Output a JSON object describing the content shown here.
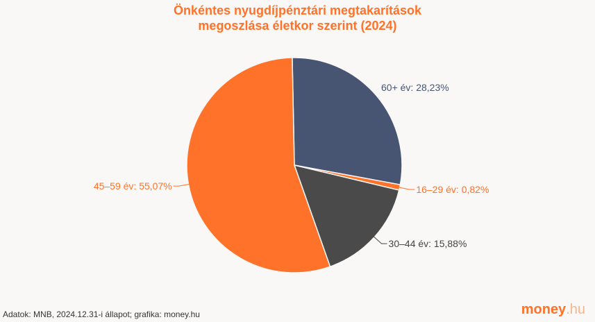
{
  "chart_data": {
    "type": "pie",
    "title_line1": "Önkéntes nyugdíjpénztári megtakarítások",
    "title_line2": "megoszlása életkor szerint (2024)",
    "slices": [
      {
        "label": "60+ év: 28,23%",
        "name": "60+ év",
        "value": 28.23,
        "color": "#475573"
      },
      {
        "label": "16–29 év: 0,82%",
        "name": "16–29 év",
        "value": 0.82,
        "color": "#ff7229"
      },
      {
        "label": "30–44 év: 15,88%",
        "name": "30–44 év",
        "value": 15.88,
        "color": "#4a4a4a"
      },
      {
        "label": "45–59 év: 55,07%",
        "name": "45–59 év",
        "value": 55.07,
        "color": "#ff7229"
      }
    ]
  },
  "footer": {
    "source": "Adatok: MNB, 2024.12.31-i állapot; grafika: money.hu",
    "logo_main": "money",
    "logo_suffix": ".hu"
  }
}
